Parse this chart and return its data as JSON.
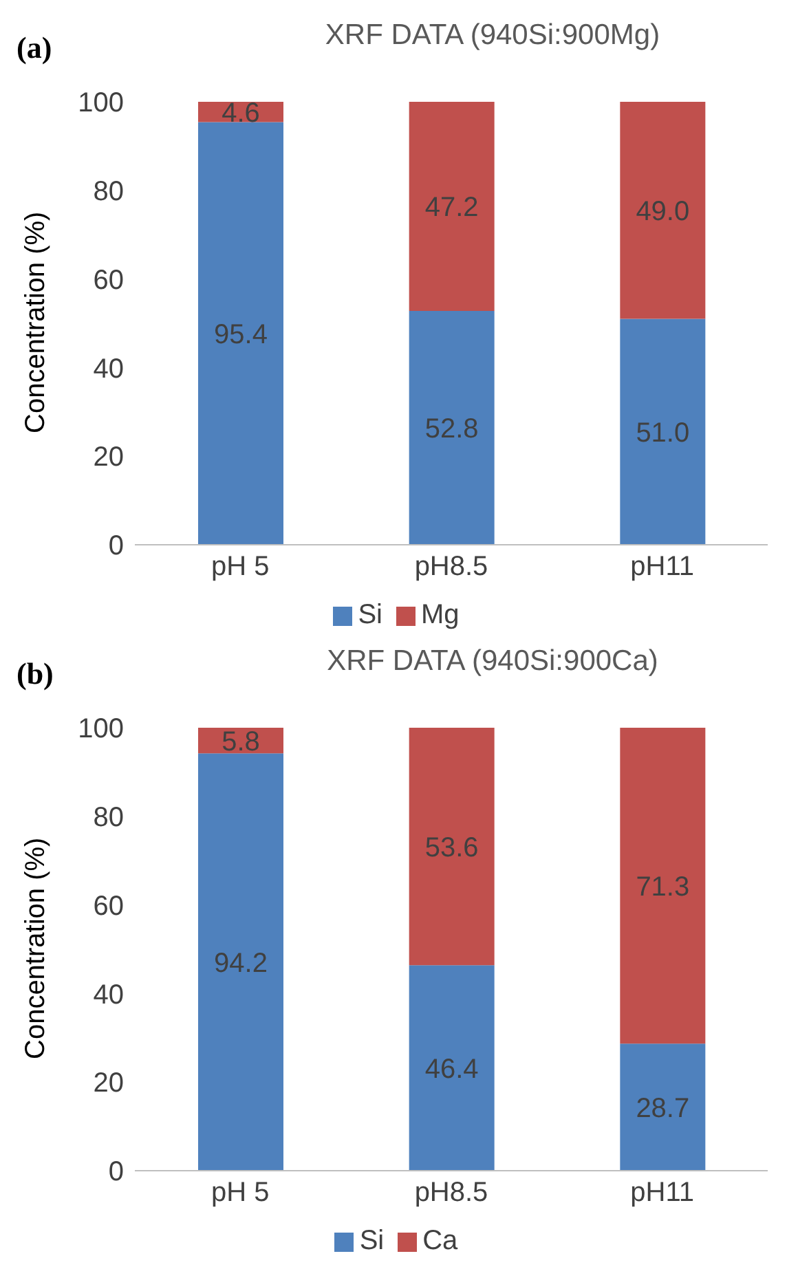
{
  "chart_data": [
    {
      "type": "bar",
      "title": "XRF DATA (940Si:900Mg)",
      "annotations": [
        "(a)"
      ],
      "ylabel": "Concentration (%)",
      "categories": [
        "pH 5",
        "pH8.5",
        "pH11"
      ],
      "stacked": true,
      "series": [
        {
          "name": "Si",
          "color": "#4f81bd",
          "values": [
            95.4,
            52.8,
            51.0
          ],
          "value_labels": [
            "95.4",
            "52.8",
            "51.0"
          ]
        },
        {
          "name": "Mg",
          "color": "#c0504d",
          "values": [
            4.6,
            47.2,
            49.0
          ],
          "value_labels": [
            "4.6",
            "47.2",
            "49.0"
          ]
        }
      ],
      "ylim": [
        0,
        100
      ],
      "yticks": [
        0,
        20,
        40,
        60,
        80,
        100
      ],
      "legend": "bottom"
    },
    {
      "type": "bar",
      "title": "XRF DATA (940Si:900Ca)",
      "annotations": [
        "(b)"
      ],
      "ylabel": "Concentration (%)",
      "categories": [
        "pH 5",
        "pH8.5",
        "pH11"
      ],
      "stacked": true,
      "series": [
        {
          "name": "Si",
          "color": "#4f81bd",
          "values": [
            94.2,
            46.4,
            28.7
          ],
          "value_labels": [
            "94.2",
            "46.4",
            "28.7"
          ]
        },
        {
          "name": "Ca",
          "color": "#c0504d",
          "values": [
            5.8,
            53.6,
            71.3
          ],
          "value_labels": [
            "5.8",
            "53.6",
            "71.3"
          ]
        }
      ],
      "ylim": [
        0,
        100
      ],
      "yticks": [
        0,
        20,
        40,
        60,
        80,
        100
      ],
      "legend": "bottom"
    }
  ]
}
